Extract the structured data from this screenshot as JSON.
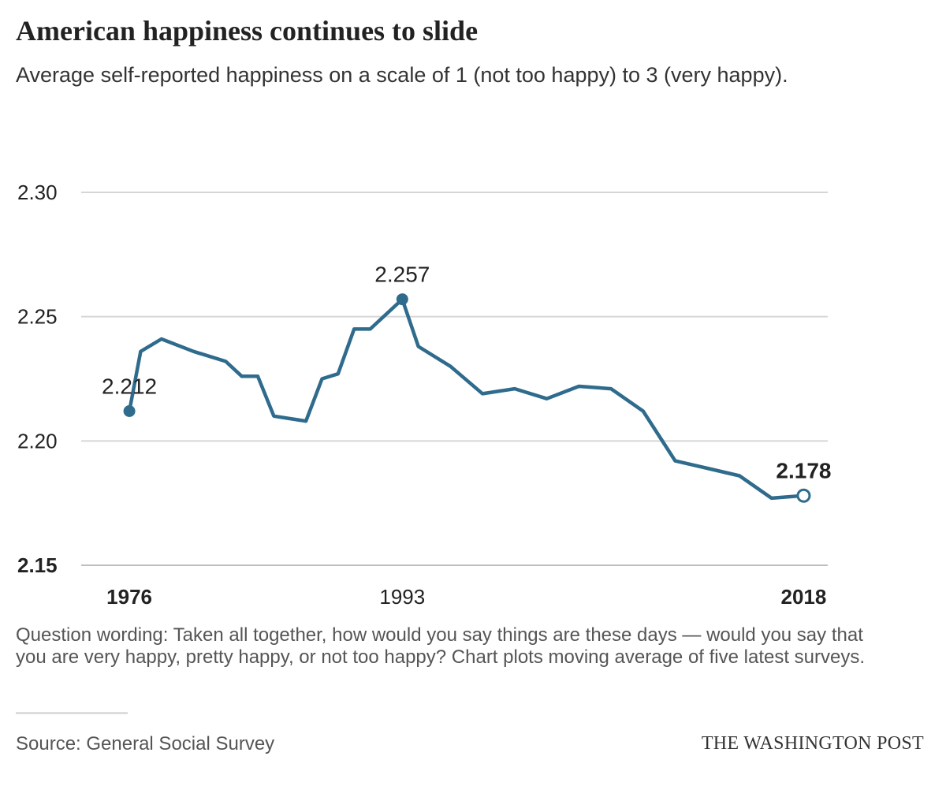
{
  "title": "American happiness continues to slide",
  "subtitle": "Average self-reported happiness on a scale of 1 (not too happy) to 3 (very happy).",
  "note": "Question wording: Taken all together, how would you say things are these days — would you say that you are very happy, pretty happy, or not too happy? Chart plots moving average of five latest surveys.",
  "source": "Source: General Social Survey",
  "credit": "THE WASHINGTON POST",
  "colors": {
    "line": "#2f6b8c",
    "grid": "#d6d6d6",
    "text": "#222222"
  },
  "chart_data": {
    "type": "line",
    "title": "American happiness continues to slide",
    "xlabel": "",
    "ylabel": "",
    "ylim": [
      2.15,
      2.3
    ],
    "yticks": [
      {
        "value": 2.3,
        "label": "2.30",
        "bold": false
      },
      {
        "value": 2.25,
        "label": "2.25",
        "bold": false
      },
      {
        "value": 2.2,
        "label": "2.20",
        "bold": false
      },
      {
        "value": 2.15,
        "label": "2.15",
        "bold": true
      }
    ],
    "xticks": [
      {
        "value": 1976,
        "label": "1976",
        "bold": true
      },
      {
        "value": 1993,
        "label": "1993",
        "bold": false
      },
      {
        "value": 2018,
        "label": "2018",
        "bold": true
      }
    ],
    "grid": true,
    "series": [
      {
        "x": [
          1976,
          1976.7,
          1978,
          1980,
          1982,
          1983,
          1984,
          1985,
          1986,
          1987,
          1988,
          1989,
          1990,
          1991,
          1993,
          1994,
          1996,
          1998,
          2000,
          2002,
          2004,
          2006,
          2008,
          2010,
          2012,
          2014,
          2016,
          2018
        ],
        "y": [
          2.212,
          2.236,
          2.241,
          2.236,
          2.232,
          2.226,
          2.226,
          2.21,
          2.209,
          2.208,
          2.225,
          2.227,
          2.245,
          2.245,
          2.257,
          2.238,
          2.23,
          2.219,
          2.221,
          2.217,
          2.222,
          2.221,
          2.212,
          2.192,
          2.189,
          2.186,
          2.177,
          2.178
        ]
      }
    ],
    "annotations": [
      {
        "x": 1976,
        "y": 2.212,
        "label": "2.212",
        "marker": "filled",
        "bold": false
      },
      {
        "x": 1993,
        "y": 2.257,
        "label": "2.257",
        "marker": "filled",
        "bold": false
      },
      {
        "x": 2018,
        "y": 2.178,
        "label": "2.178",
        "marker": "open",
        "bold": true
      }
    ]
  }
}
